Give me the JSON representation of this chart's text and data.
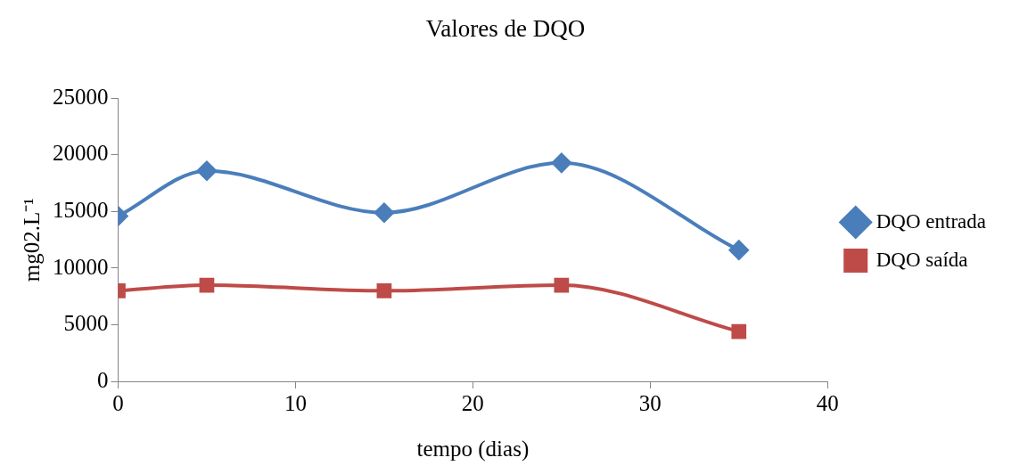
{
  "chart_data": {
    "type": "line",
    "title": "Valores de DQO",
    "xlabel": "tempo (dias)",
    "ylabel": "mg02.L⁻¹",
    "x": [
      0,
      5,
      15,
      25,
      35
    ],
    "series": [
      {
        "name": "DQO entrada",
        "color": "#4a7ebb",
        "values": [
          14600,
          18600,
          14900,
          19300,
          11600
        ],
        "marker": "diamond"
      },
      {
        "name": "DQO saída",
        "color": "#be4b48",
        "values": [
          8000,
          8500,
          8000,
          8500,
          4400
        ],
        "marker": "square"
      }
    ],
    "xlim": [
      0,
      40
    ],
    "xticks": [
      0,
      10,
      20,
      30,
      40
    ],
    "ylim": [
      0,
      25000
    ],
    "yticks": [
      0,
      5000,
      10000,
      15000,
      20000,
      25000
    ],
    "grid": false,
    "legend": "right"
  }
}
